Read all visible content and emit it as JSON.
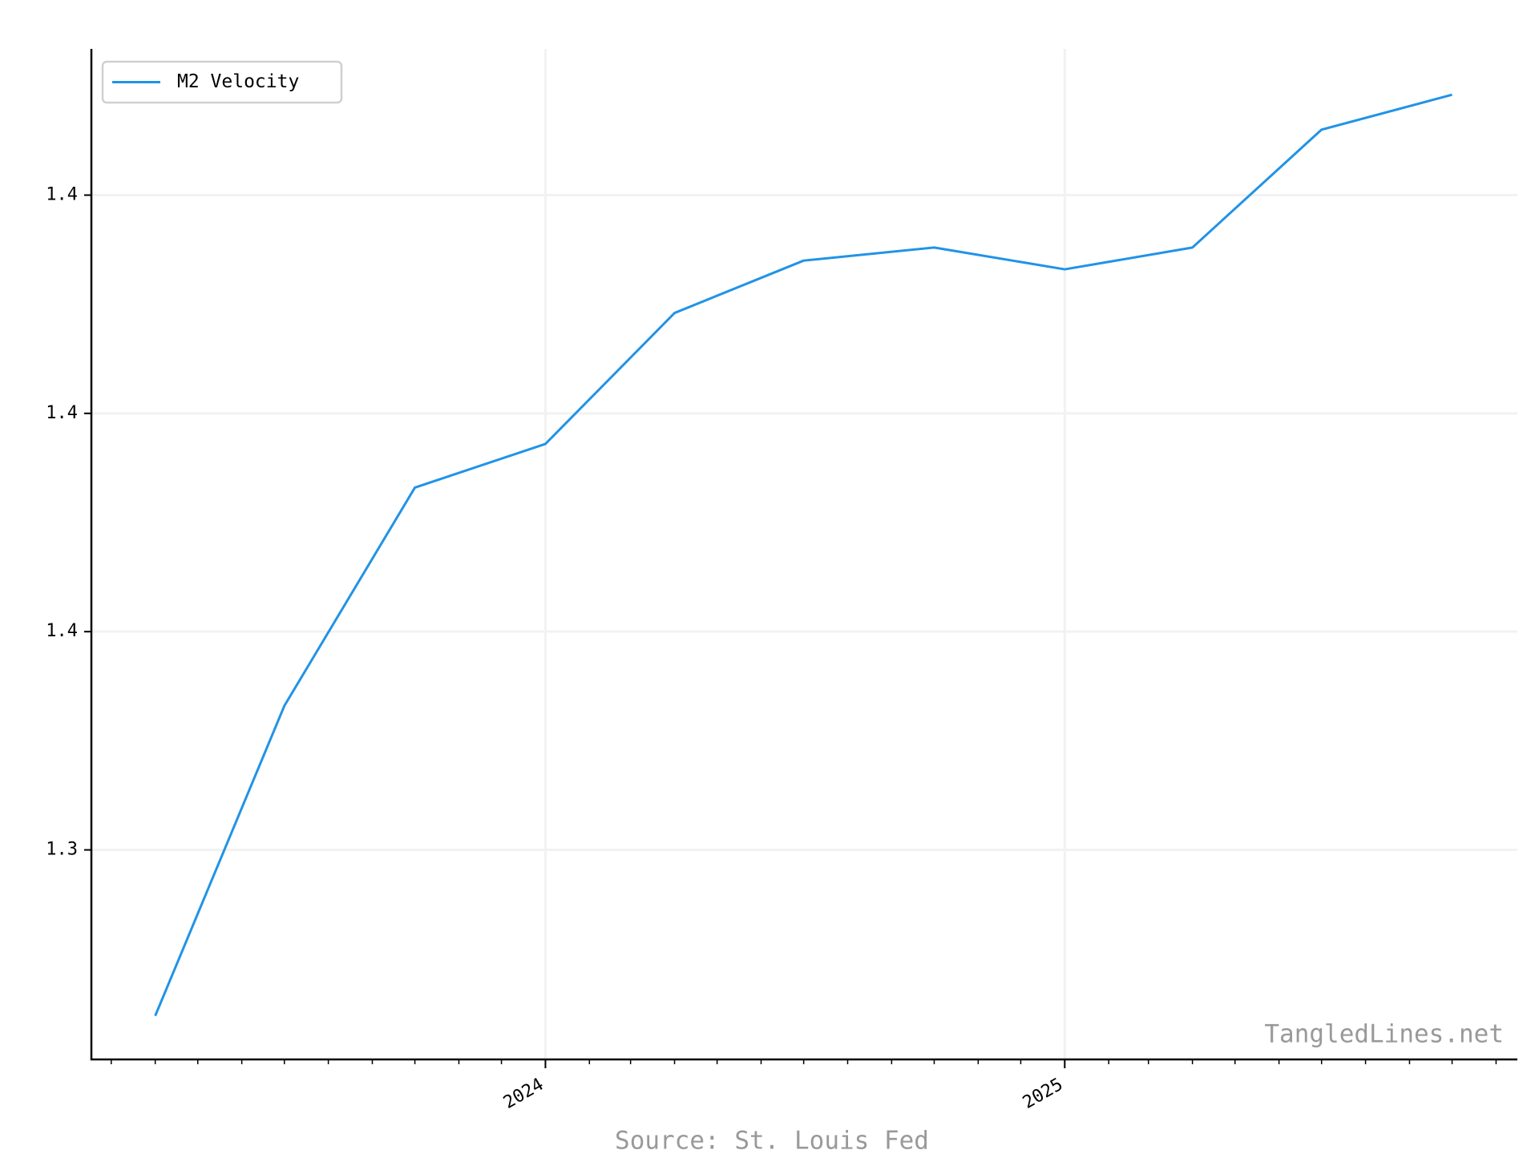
{
  "chart_data": {
    "type": "line",
    "x": [
      "2023-04",
      "2023-07",
      "2023-10",
      "2024-01",
      "2024-04",
      "2024-07",
      "2024-10",
      "2025-01",
      "2025-04",
      "2025-07",
      "2025-10"
    ],
    "series": [
      {
        "name": "M2 Velocity",
        "color": "#2193e6",
        "values": [
          1.262,
          1.333,
          1.383,
          1.393,
          1.423,
          1.435,
          1.438,
          1.433,
          1.438,
          1.465,
          1.473
        ]
      }
    ],
    "xlim": [
      "2023-02-15",
      "2025-11-16"
    ],
    "xticks": [
      "2024",
      "2025"
    ],
    "ylim": [
      1.252,
      1.4835
    ],
    "yticks": [
      1.3,
      {
        "value": 1.35,
        "label": "1.4"
      },
      1.4,
      {
        "value": 1.45,
        "label": "1.4"
      }
    ],
    "grid": true,
    "legend": "upper left",
    "watermark": "TangledLines.net",
    "source": "Source: St. Louis Fed"
  }
}
